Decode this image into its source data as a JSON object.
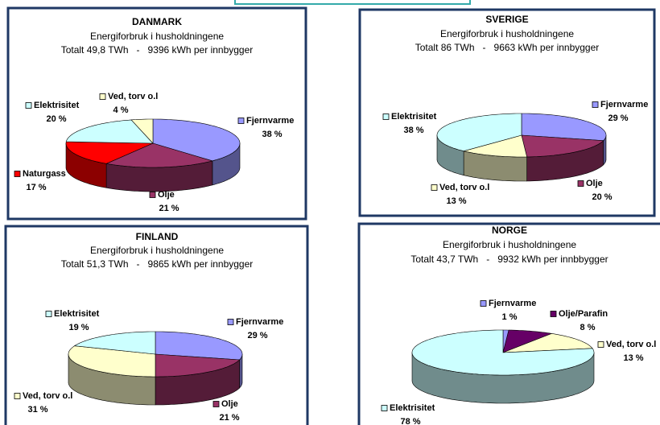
{
  "chart_data": [
    {
      "type": "pie",
      "title": "DANMARK",
      "subtitle": "Energiforbruk i husholdningene",
      "note": "Totalt 49,8 TWh   -   9396 kWh per innbygger",
      "categories": [
        "Fjernvarme",
        "Olje",
        "Naturgass",
        "Elektrisitet",
        "Ved, torv o.l"
      ],
      "values": [
        38,
        21,
        17,
        20,
        4
      ],
      "value_labels": [
        "38 %",
        "21 %",
        "17 %",
        "20 %",
        "4 %"
      ],
      "colors": [
        "#9999ff",
        "#993366",
        "#ff0000",
        "#ccffff",
        "#ffffcc"
      ]
    },
    {
      "type": "pie",
      "title": "SVERIGE",
      "subtitle": "Energiforbruk i husholdningene",
      "note": "Totalt 86 TWh   -   9663 kWh per innbygger",
      "categories": [
        "Fjernvarme",
        "Olje",
        "Ved, torv o.l",
        "Elektrisitet"
      ],
      "values": [
        29,
        20,
        13,
        38
      ],
      "value_labels": [
        "29 %",
        "20 %",
        "13 %",
        "38 %"
      ],
      "colors": [
        "#9999ff",
        "#993366",
        "#ffffcc",
        "#ccffff"
      ]
    },
    {
      "type": "pie",
      "title": "FINLAND",
      "subtitle": "Energiforbruk i husholdningene",
      "note": "Totalt 51,3 TWh   -   9865 kWh per innbygger",
      "categories": [
        "Fjernvarme",
        "Olje",
        "Ved, torv o.l",
        "Elektrisitet"
      ],
      "values": [
        29,
        21,
        31,
        19
      ],
      "value_labels": [
        "29 %",
        "21 %",
        "31 %",
        "19 %"
      ],
      "colors": [
        "#9999ff",
        "#993366",
        "#ffffcc",
        "#ccffff"
      ]
    },
    {
      "type": "pie",
      "title": "NORGE",
      "subtitle": "Energiforbruk i husholdningene",
      "note": "Totalt 43,7 TWh   -   9932 kWh per innbbygger",
      "categories": [
        "Fjernvarme",
        "Olje/Parafin",
        "Ved, torv o.l",
        "Elektrisitet"
      ],
      "values": [
        1,
        8,
        13,
        78
      ],
      "value_labels": [
        "1 %",
        "8 %",
        "13 %",
        "78 %"
      ],
      "colors": [
        "#9999ff",
        "#660066",
        "#ffffcc",
        "#ccffff"
      ]
    }
  ]
}
